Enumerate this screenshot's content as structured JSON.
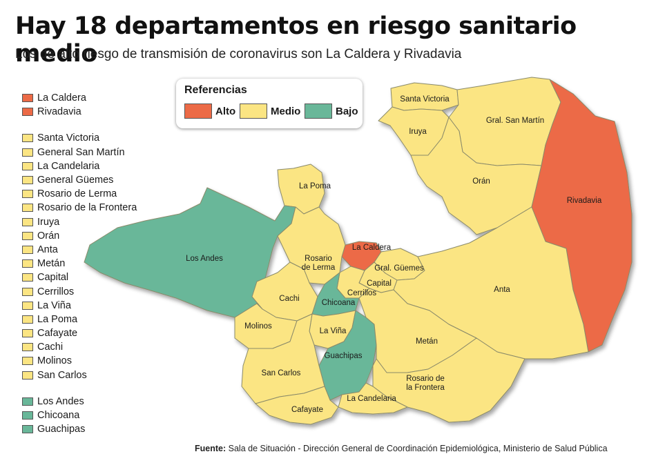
{
  "header": {
    "title": "Hay 18 departamentos en riesgo sanitario medio",
    "subtitle": "Los de alto riesgo de transmisión de coronavirus son La Caldera y Rivadavia"
  },
  "colors": {
    "alto": "#ec6a46",
    "medio": "#fbe583",
    "bajo": "#69b799"
  },
  "references": {
    "title": "Referencias",
    "items": [
      {
        "label": "Alto",
        "level": "alto"
      },
      {
        "label": "Medio",
        "level": "medio"
      },
      {
        "label": "Bajo",
        "level": "bajo"
      }
    ]
  },
  "legend": {
    "groups": [
      {
        "level": "alto",
        "items": [
          "La Caldera",
          "Rivadavia"
        ]
      },
      {
        "level": "medio",
        "items": [
          "Santa Victoria",
          "General San Martín",
          "La Candelaria",
          "General Güemes",
          "Rosario de Lerma",
          "Rosario de la Frontera",
          "Iruya",
          "Orán",
          "Anta",
          "Metán",
          "Capital",
          "Cerrillos",
          "La Viña",
          "La Poma",
          "Cafayate",
          "Cachi",
          "Molinos",
          "San Carlos"
        ]
      },
      {
        "level": "bajo",
        "items": [
          "Los Andes",
          "Chicoana",
          "Guachipas"
        ]
      }
    ]
  },
  "map": {
    "departments": [
      {
        "label": "Santa Victoria",
        "level": "medio"
      },
      {
        "label": "Iruya",
        "level": "medio"
      },
      {
        "label": "Gral. San Martín",
        "level": "medio"
      },
      {
        "label": "Orán",
        "level": "medio"
      },
      {
        "label": "Rivadavia",
        "level": "alto"
      },
      {
        "label": "La Poma",
        "level": "medio"
      },
      {
        "label": "Los Andes",
        "level": "bajo"
      },
      {
        "label": "La Caldera",
        "level": "alto"
      },
      {
        "label": "Rosario de Lerma",
        "level": "medio"
      },
      {
        "label": "Gral. Güemes",
        "level": "medio"
      },
      {
        "label": "Capital",
        "level": "medio"
      },
      {
        "label": "Cerrillos",
        "level": "medio"
      },
      {
        "label": "Cachi",
        "level": "medio"
      },
      {
        "label": "Chicoana",
        "level": "bajo"
      },
      {
        "label": "Anta",
        "level": "medio"
      },
      {
        "label": "Molinos",
        "level": "medio"
      },
      {
        "label": "La Viña",
        "level": "medio"
      },
      {
        "label": "Guachipas",
        "level": "bajo"
      },
      {
        "label": "Metán",
        "level": "medio"
      },
      {
        "label": "San Carlos",
        "level": "medio"
      },
      {
        "label": "Rosario de la Frontera",
        "level": "medio"
      },
      {
        "label": "La Candelaria",
        "level": "medio"
      },
      {
        "label": "Cafayate",
        "level": "medio"
      }
    ]
  },
  "source": {
    "label": "Fuente:",
    "text": "Sala de Situación - Dirección General de Coordinación Epidemiológica, Ministerio de Salud Pública"
  }
}
